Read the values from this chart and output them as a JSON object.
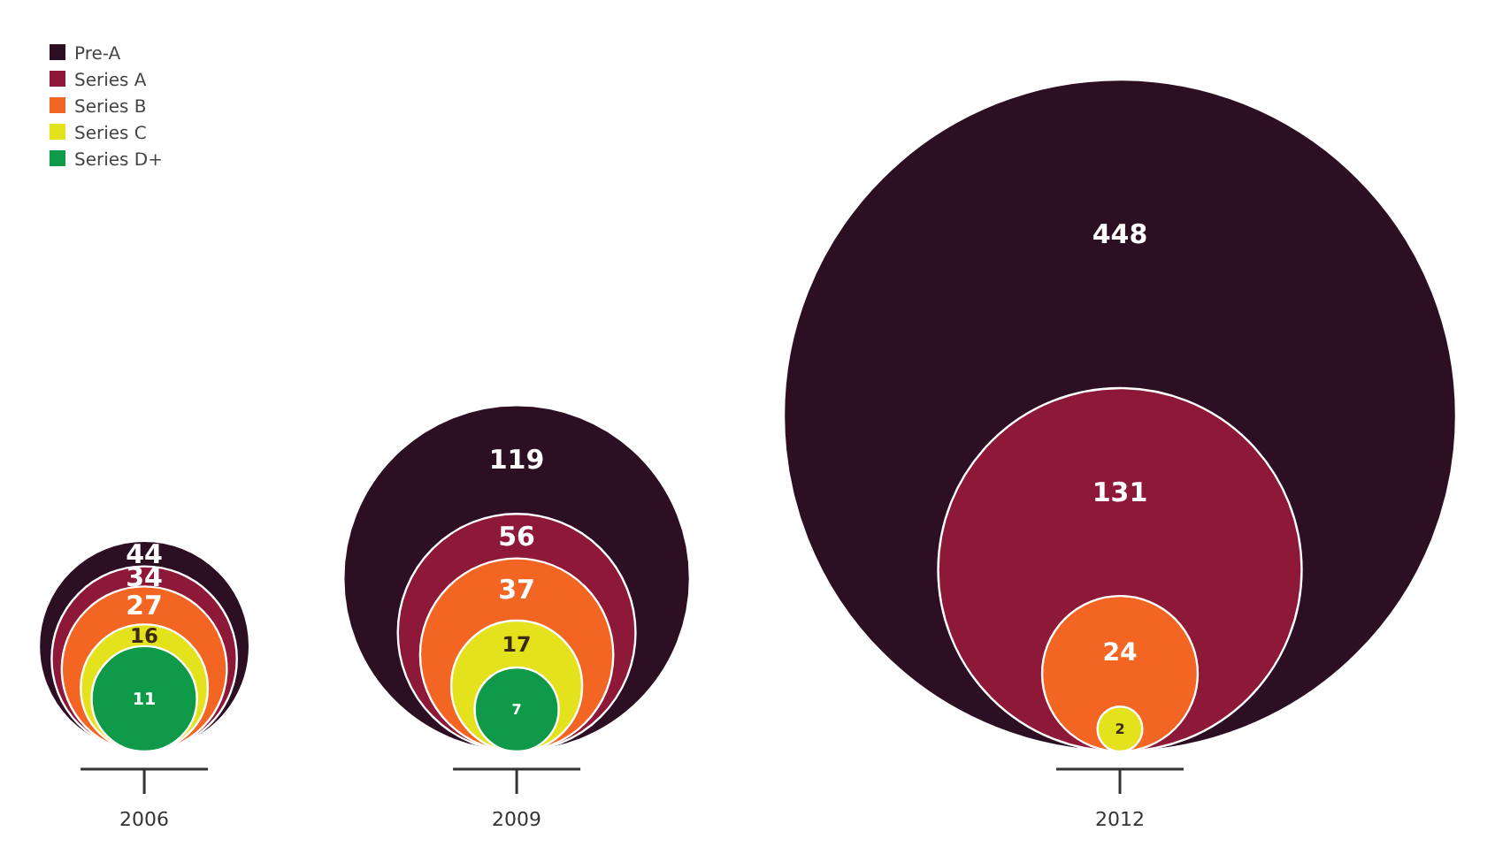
{
  "chart_data": {
    "type": "other",
    "categories": [
      "2006",
      "2009",
      "2012"
    ],
    "legend": "top left",
    "data_labels": true,
    "series": [
      {
        "name": "Pre-A",
        "color": "#2d0f24",
        "values": [
          44,
          119,
          448
        ]
      },
      {
        "name": "Series A",
        "color": "#8e1838",
        "values": [
          34,
          56,
          131
        ]
      },
      {
        "name": "Series B",
        "color": "#f26522",
        "values": [
          27,
          37,
          24
        ]
      },
      {
        "name": "Series C",
        "color": "#e3e21c",
        "values": [
          16,
          17,
          2
        ]
      },
      {
        "name": "Series D+",
        "color": "#0e9a48",
        "values": [
          11,
          7,
          null
        ]
      }
    ]
  }
}
